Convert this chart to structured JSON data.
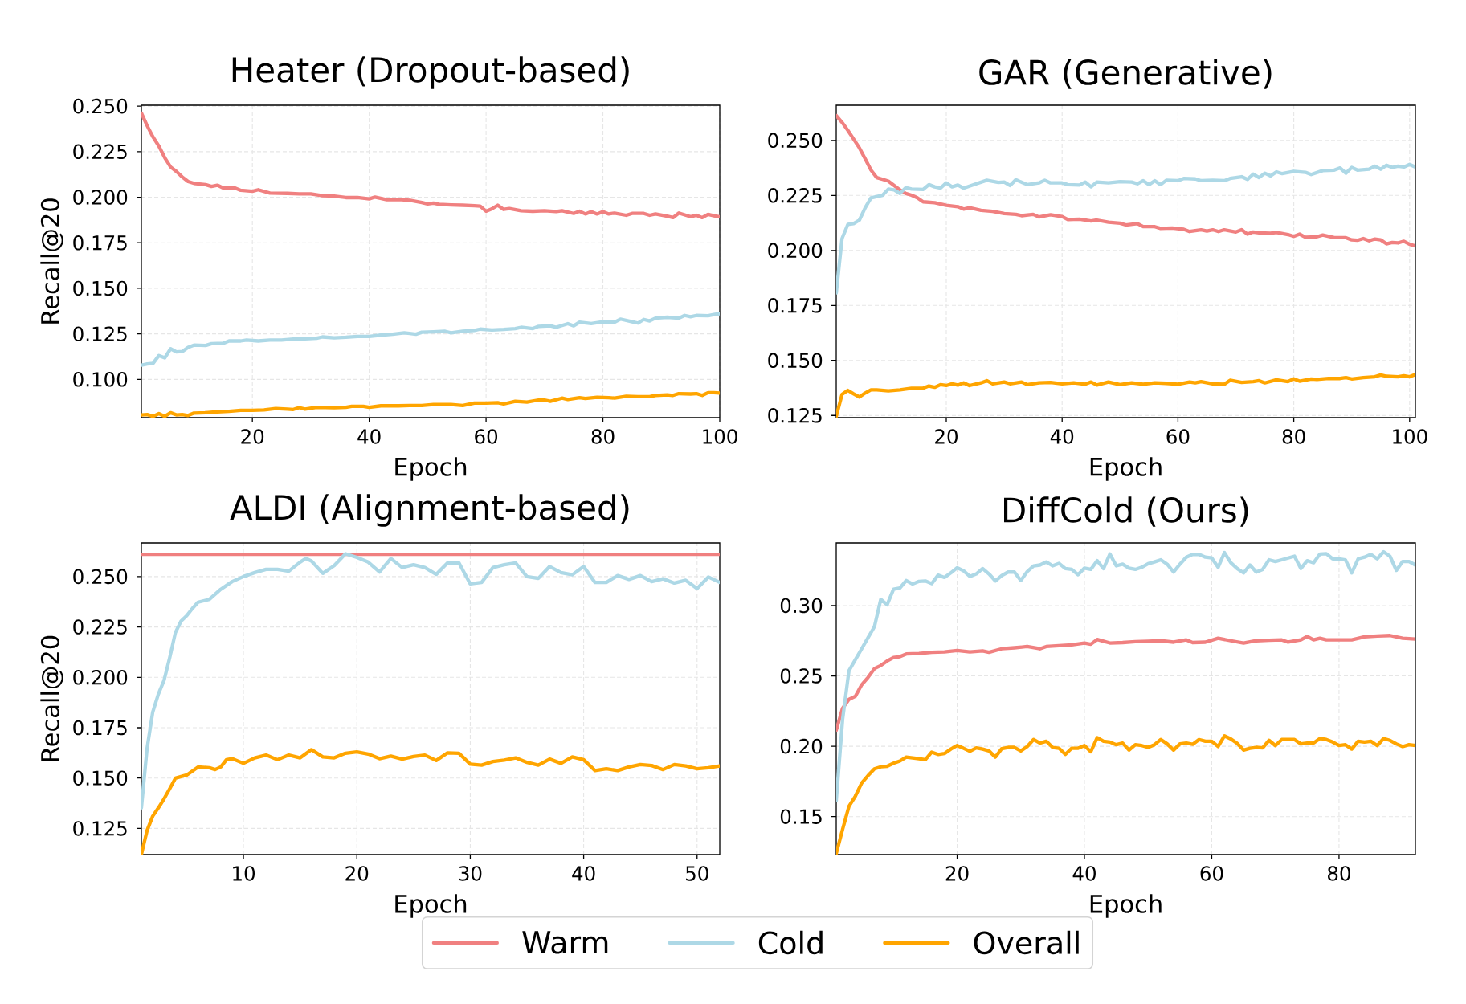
{
  "chart_data": [
    {
      "type": "line",
      "title": "Heater (Dropout-based)",
      "xlabel": "Epoch",
      "ylabel": "Recall@20",
      "xlim": [
        1,
        100
      ],
      "ylim": [
        0.079,
        0.2505
      ],
      "xticks": [
        20,
        40,
        60,
        80,
        100
      ],
      "yticks": [
        {
          "value": 0.1,
          "label": "0.100"
        },
        {
          "value": 0.125,
          "label": "0.125"
        },
        {
          "value": 0.15,
          "label": "0.150"
        },
        {
          "value": 0.175,
          "label": "0.175"
        },
        {
          "value": 0.2,
          "label": "0.200"
        },
        {
          "value": 0.225,
          "label": "0.225"
        },
        {
          "value": 0.25,
          "label": "0.250"
        }
      ],
      "grid": true,
      "series": [
        {
          "color": "#f08080",
          "x": [
            1,
            2,
            3,
            4,
            5,
            6,
            7,
            8,
            9,
            10,
            12,
            13,
            14,
            15,
            17,
            18,
            20,
            21,
            23,
            26,
            28,
            30,
            32,
            34,
            36,
            38,
            40,
            41,
            43,
            45,
            47,
            49,
            50,
            51,
            52,
            54,
            56,
            58,
            59,
            60,
            61,
            62,
            63,
            64,
            66,
            68,
            70,
            72,
            73,
            75,
            76,
            77,
            78,
            79,
            80,
            81,
            82,
            84,
            85,
            87,
            88,
            89,
            91,
            92,
            93,
            95,
            96,
            97,
            98,
            99,
            100
          ],
          "values": [
            0.2462,
            0.2392,
            0.233,
            0.228,
            0.2217,
            0.2166,
            0.2141,
            0.2111,
            0.2086,
            0.2076,
            0.2069,
            0.2059,
            0.2066,
            0.2051,
            0.2051,
            0.2038,
            0.2033,
            0.2041,
            0.2023,
            0.2021,
            0.2018,
            0.2018,
            0.2008,
            0.2006,
            0.1998,
            0.1998,
            0.1991,
            0.2001,
            0.1986,
            0.1988,
            0.1983,
            0.1971,
            0.1963,
            0.1968,
            0.1961,
            0.1958,
            0.1956,
            0.1953,
            0.1951,
            0.1923,
            0.1936,
            0.1956,
            0.1933,
            0.1938,
            0.1926,
            0.1923,
            0.1926,
            0.1921,
            0.1926,
            0.1911,
            0.1923,
            0.1908,
            0.1921,
            0.1908,
            0.1921,
            0.1908,
            0.1913,
            0.1901,
            0.1911,
            0.1911,
            0.1901,
            0.1908,
            0.1896,
            0.1888,
            0.1913,
            0.1893,
            0.1901,
            0.1888,
            0.1906,
            0.1898,
            0.1893
          ]
        },
        {
          "color": "#add8e6",
          "x": [
            1,
            2,
            3,
            4,
            5,
            6,
            7,
            8,
            9,
            10,
            12,
            13,
            15,
            16,
            18,
            19,
            21,
            23,
            25,
            27,
            29,
            31,
            32,
            34,
            36,
            38,
            40,
            42,
            44,
            46,
            48,
            49,
            51,
            53,
            54,
            56,
            58,
            59,
            61,
            63,
            65,
            66,
            68,
            69,
            71,
            72,
            74,
            75,
            76,
            78,
            80,
            82,
            83,
            85,
            86,
            87,
            88,
            89,
            91,
            93,
            94,
            95,
            96,
            98,
            99,
            100
          ],
          "values": [
            0.1078,
            0.1085,
            0.1088,
            0.1131,
            0.1118,
            0.1168,
            0.1151,
            0.1153,
            0.1176,
            0.1188,
            0.1186,
            0.1196,
            0.1198,
            0.1211,
            0.1211,
            0.1216,
            0.1211,
            0.1216,
            0.1216,
            0.1221,
            0.1223,
            0.1226,
            0.1233,
            0.1228,
            0.1231,
            0.1236,
            0.1236,
            0.1243,
            0.1248,
            0.1256,
            0.1248,
            0.1259,
            0.1261,
            0.1264,
            0.1256,
            0.1264,
            0.1269,
            0.1276,
            0.1271,
            0.1274,
            0.1279,
            0.1286,
            0.1279,
            0.1291,
            0.1294,
            0.1286,
            0.1306,
            0.1294,
            0.1314,
            0.1306,
            0.1316,
            0.1314,
            0.1331,
            0.1316,
            0.1309,
            0.1329,
            0.1321,
            0.1336,
            0.1341,
            0.1336,
            0.1351,
            0.1344,
            0.1351,
            0.1349,
            0.1356,
            0.1361
          ]
        },
        {
          "color": "#ffa500",
          "x": [
            1,
            2,
            3,
            4,
            5,
            6,
            7,
            8,
            9,
            10,
            12,
            14,
            16,
            18,
            20,
            22,
            24,
            26,
            27,
            28,
            29,
            31,
            34,
            36,
            37,
            39,
            40,
            42,
            45,
            47,
            49,
            51,
            54,
            56,
            58,
            60,
            62,
            63,
            65,
            67,
            69,
            70,
            71,
            73,
            74,
            76,
            77,
            79,
            81,
            82,
            84,
            86,
            88,
            89,
            91,
            92,
            93,
            95,
            96,
            97,
            98,
            99,
            100
          ],
          "values": [
            0.0805,
            0.0807,
            0.0797,
            0.0812,
            0.0797,
            0.0817,
            0.0805,
            0.0807,
            0.0802,
            0.0815,
            0.0817,
            0.0822,
            0.0825,
            0.083,
            0.083,
            0.0832,
            0.084,
            0.0837,
            0.0835,
            0.0845,
            0.0837,
            0.0847,
            0.0845,
            0.0847,
            0.0852,
            0.0852,
            0.0847,
            0.0855,
            0.0855,
            0.0857,
            0.0857,
            0.0862,
            0.0862,
            0.0857,
            0.087,
            0.087,
            0.0872,
            0.0865,
            0.088,
            0.0875,
            0.0887,
            0.0887,
            0.088,
            0.0897,
            0.089,
            0.09,
            0.0895,
            0.0902,
            0.09,
            0.0897,
            0.0907,
            0.0905,
            0.0905,
            0.0912,
            0.0915,
            0.0912,
            0.0922,
            0.092,
            0.0922,
            0.0912,
            0.0927,
            0.0927,
            0.0925
          ]
        }
      ]
    },
    {
      "type": "line",
      "title": "GAR (Generative)",
      "xlabel": "Epoch",
      "xlim": [
        1,
        101
      ],
      "ylim": [
        0.124,
        0.266
      ],
      "xticks": [
        20,
        40,
        60,
        80,
        100
      ],
      "yticks": [
        {
          "value": 0.125,
          "label": "0.125"
        },
        {
          "value": 0.15,
          "label": "0.150"
        },
        {
          "value": 0.175,
          "label": "0.175"
        },
        {
          "value": 0.2,
          "label": "0.200"
        },
        {
          "value": 0.225,
          "label": "0.225"
        },
        {
          "value": 0.25,
          "label": "0.250"
        }
      ],
      "grid": true,
      "series": [
        {
          "color": "#f08080",
          "x": [
            1,
            2,
            3,
            4,
            5,
            6,
            7,
            8,
            9,
            10,
            11,
            12,
            13,
            14,
            15,
            16,
            18,
            20,
            22,
            23,
            24,
            26,
            28,
            30,
            32,
            33,
            35,
            36,
            38,
            40,
            41,
            43,
            45,
            46,
            48,
            50,
            51,
            53,
            54,
            56,
            57,
            59,
            61,
            62,
            64,
            65,
            66,
            67,
            68,
            70,
            71,
            72,
            73,
            74,
            76,
            77,
            79,
            80,
            81,
            82,
            84,
            85,
            87,
            89,
            90,
            91,
            92,
            93,
            94,
            95,
            96,
            97,
            98,
            99,
            100,
            101
          ],
          "values": [
            0.2613,
            0.2582,
            0.2546,
            0.2506,
            0.2466,
            0.2416,
            0.2365,
            0.2331,
            0.2323,
            0.2315,
            0.2295,
            0.2275,
            0.2259,
            0.2251,
            0.2239,
            0.2221,
            0.2217,
            0.2205,
            0.2199,
            0.2188,
            0.2194,
            0.2182,
            0.2178,
            0.2168,
            0.2164,
            0.2158,
            0.2164,
            0.2152,
            0.2162,
            0.2154,
            0.214,
            0.2142,
            0.2134,
            0.2138,
            0.2128,
            0.2124,
            0.2116,
            0.2122,
            0.2108,
            0.2108,
            0.21,
            0.2102,
            0.2096,
            0.2086,
            0.2094,
            0.2088,
            0.2094,
            0.2086,
            0.2094,
            0.2084,
            0.2094,
            0.2074,
            0.2084,
            0.208,
            0.2078,
            0.2082,
            0.2072,
            0.2064,
            0.2074,
            0.206,
            0.2062,
            0.207,
            0.2058,
            0.2058,
            0.2048,
            0.2046,
            0.2054,
            0.2044,
            0.2052,
            0.2048,
            0.203,
            0.2036,
            0.2034,
            0.2042,
            0.2028,
            0.202
          ]
        },
        {
          "color": "#add8e6",
          "x": [
            1,
            2,
            3,
            4,
            5,
            6,
            7,
            8,
            9,
            10,
            11,
            12,
            13,
            14,
            16,
            17,
            18,
            19,
            20,
            21,
            22,
            23,
            25,
            27,
            29,
            30,
            31,
            32,
            34,
            36,
            37,
            38,
            40,
            41,
            43,
            44,
            45,
            46,
            48,
            50,
            52,
            53,
            54,
            55,
            56,
            57,
            58,
            60,
            61,
            63,
            64,
            66,
            68,
            69,
            71,
            72,
            73,
            74,
            75,
            76,
            77,
            78,
            80,
            82,
            83,
            85,
            87,
            88,
            89,
            90,
            91,
            93,
            94,
            95,
            96,
            97,
            98,
            99,
            100,
            101
          ],
          "values": [
            0.1807,
            0.2054,
            0.2118,
            0.2122,
            0.2138,
            0.2194,
            0.2239,
            0.2245,
            0.2251,
            0.2279,
            0.2275,
            0.2259,
            0.2285,
            0.2279,
            0.2277,
            0.2299,
            0.2289,
            0.2283,
            0.2307,
            0.2289,
            0.2297,
            0.2283,
            0.2301,
            0.2319,
            0.2309,
            0.2311,
            0.2295,
            0.2321,
            0.2299,
            0.2307,
            0.2319,
            0.2307,
            0.2307,
            0.2299,
            0.2297,
            0.2311,
            0.2289,
            0.2311,
            0.2307,
            0.2313,
            0.2311,
            0.2303,
            0.2317,
            0.2299,
            0.2317,
            0.2299,
            0.2319,
            0.2317,
            0.2327,
            0.2325,
            0.2317,
            0.2319,
            0.2317,
            0.2327,
            0.2335,
            0.2323,
            0.2347,
            0.2331,
            0.2351,
            0.2339,
            0.2357,
            0.2349,
            0.2359,
            0.2355,
            0.2345,
            0.2363,
            0.2365,
            0.2375,
            0.2351,
            0.2377,
            0.2365,
            0.2369,
            0.2383,
            0.2369,
            0.2387,
            0.2377,
            0.2383,
            0.2379,
            0.2391,
            0.2379
          ]
        },
        {
          "color": "#ffa500",
          "x": [
            1,
            2,
            3,
            4,
            5,
            6,
            7,
            8,
            10,
            12,
            14,
            16,
            17,
            18,
            19,
            20,
            21,
            22,
            23,
            24,
            26,
            27,
            28,
            30,
            31,
            33,
            34,
            36,
            38,
            40,
            42,
            44,
            45,
            46,
            48,
            50,
            52,
            54,
            56,
            58,
            60,
            62,
            63,
            64,
            66,
            68,
            69,
            71,
            73,
            74,
            75,
            77,
            79,
            80,
            81,
            83,
            84,
            86,
            88,
            89,
            90,
            92,
            94,
            95,
            96,
            98,
            99,
            100,
            101
          ],
          "values": [
            0.1246,
            0.1346,
            0.1364,
            0.1348,
            0.1334,
            0.1352,
            0.1366,
            0.1366,
            0.1362,
            0.1366,
            0.1374,
            0.1374,
            0.1384,
            0.1378,
            0.139,
            0.1386,
            0.1394,
            0.1388,
            0.1398,
            0.1386,
            0.1398,
            0.1408,
            0.1394,
            0.1402,
            0.1394,
            0.1402,
            0.139,
            0.1398,
            0.14,
            0.1394,
            0.1398,
            0.1392,
            0.1402,
            0.1388,
            0.1402,
            0.139,
            0.1398,
            0.1392,
            0.1398,
            0.1396,
            0.1392,
            0.1402,
            0.1398,
            0.1404,
            0.1394,
            0.1392,
            0.141,
            0.14,
            0.1404,
            0.1408,
            0.1398,
            0.1412,
            0.1404,
            0.1416,
            0.1406,
            0.1416,
            0.1414,
            0.1418,
            0.1418,
            0.1422,
            0.1416,
            0.1422,
            0.1426,
            0.1434,
            0.1428,
            0.1426,
            0.143,
            0.1426,
            0.1436
          ]
        }
      ]
    },
    {
      "type": "line",
      "title": "ALDI (Alignment-based)",
      "xlabel": "Epoch",
      "ylabel": "Recall@20",
      "xlim": [
        1,
        52
      ],
      "ylim": [
        0.112,
        0.2667
      ],
      "xticks": [
        10,
        20,
        30,
        40,
        50
      ],
      "yticks": [
        {
          "value": 0.125,
          "label": "0.125"
        },
        {
          "value": 0.15,
          "label": "0.150"
        },
        {
          "value": 0.175,
          "label": "0.175"
        },
        {
          "value": 0.2,
          "label": "0.200"
        },
        {
          "value": 0.225,
          "label": "0.225"
        },
        {
          "value": 0.25,
          "label": "0.250"
        }
      ],
      "grid": true,
      "series": [
        {
          "color": "#f08080",
          "x": [
            1,
            52
          ],
          "values": [
            0.261,
            0.261
          ]
        },
        {
          "color": "#add8e6",
          "x": [
            1,
            1.5,
            2,
            2.5,
            3,
            3.5,
            4,
            4.5,
            5,
            5.5,
            6,
            7,
            8,
            9,
            10,
            11,
            12,
            13,
            14,
            15,
            15.5,
            16,
            17,
            18,
            19,
            20,
            21,
            22,
            23,
            24,
            25,
            26,
            27,
            28,
            29,
            30,
            31,
            32,
            33,
            34,
            35,
            36,
            37,
            38,
            39,
            40,
            41,
            42,
            43,
            44,
            45,
            46,
            47,
            48,
            49,
            50,
            51,
            52
          ],
          "values": [
            0.1352,
            0.1646,
            0.1827,
            0.1917,
            0.1985,
            0.2098,
            0.2222,
            0.2279,
            0.2306,
            0.2342,
            0.2373,
            0.2387,
            0.2437,
            0.2475,
            0.25,
            0.252,
            0.2536,
            0.2536,
            0.2527,
            0.2572,
            0.259,
            0.2577,
            0.2516,
            0.2554,
            0.2613,
            0.2595,
            0.2572,
            0.2523,
            0.259,
            0.2545,
            0.2559,
            0.2545,
            0.2511,
            0.2568,
            0.2568,
            0.2464,
            0.2471,
            0.2545,
            0.2559,
            0.2568,
            0.25,
            0.2491,
            0.255,
            0.252,
            0.2509,
            0.255,
            0.2471,
            0.2471,
            0.2505,
            0.2486,
            0.2505,
            0.2475,
            0.2489,
            0.2468,
            0.2482,
            0.2441,
            0.2498,
            0.2471
          ]
        },
        {
          "color": "#ffa500",
          "x": [
            1,
            1.5,
            2,
            2.5,
            3,
            3.5,
            4,
            5,
            6,
            7,
            7.5,
            8,
            8.5,
            9,
            10,
            11,
            12,
            13,
            14,
            15,
            16,
            17,
            18,
            19,
            20,
            21,
            22,
            23,
            24,
            25,
            26,
            27,
            28,
            29,
            30,
            31,
            32,
            33,
            34,
            35,
            36,
            37,
            38,
            39,
            40,
            41,
            42,
            43,
            44,
            45,
            46,
            47,
            48,
            49,
            50,
            51,
            52
          ],
          "values": [
            0.1121,
            0.1239,
            0.1311,
            0.1352,
            0.1397,
            0.1447,
            0.1499,
            0.1515,
            0.1555,
            0.1551,
            0.1542,
            0.1555,
            0.1591,
            0.1596,
            0.1573,
            0.16,
            0.1614,
            0.1591,
            0.1614,
            0.16,
            0.1641,
            0.1605,
            0.16,
            0.1623,
            0.163,
            0.1619,
            0.1596,
            0.1609,
            0.1594,
            0.1607,
            0.1614,
            0.1587,
            0.1625,
            0.1623,
            0.1569,
            0.1564,
            0.1582,
            0.1589,
            0.16,
            0.1578,
            0.1564,
            0.1594,
            0.1573,
            0.1605,
            0.1591,
            0.1537,
            0.1546,
            0.1537,
            0.1555,
            0.1567,
            0.1562,
            0.1542,
            0.1567,
            0.156,
            0.1546,
            0.1551,
            0.156
          ]
        }
      ]
    },
    {
      "type": "line",
      "title": "DiffCold (Ours)",
      "xlabel": "Epoch",
      "xlim": [
        1,
        92
      ],
      "ylim": [
        0.123,
        0.3445
      ],
      "xticks": [
        20,
        40,
        60,
        80
      ],
      "yticks": [
        {
          "value": 0.15,
          "label": "0.15"
        },
        {
          "value": 0.2,
          "label": "0.20"
        },
        {
          "value": 0.25,
          "label": "0.25"
        },
        {
          "value": 0.3,
          "label": "0.30"
        }
      ],
      "grid": true,
      "legend": "bottom",
      "series": [
        {
          "name": "Warm",
          "color": "#f08080",
          "x": [
            1,
            2,
            3,
            4,
            5,
            6,
            7,
            8,
            9,
            10,
            11,
            12,
            14,
            16,
            18,
            20,
            22,
            24,
            25,
            27,
            29,
            31,
            33,
            34,
            36,
            38,
            40,
            41,
            42,
            43,
            44,
            46,
            48,
            50,
            52,
            54,
            56,
            57,
            59,
            61,
            63,
            65,
            67,
            69,
            71,
            72,
            74,
            75,
            76,
            77,
            78,
            80,
            82,
            84,
            86,
            88,
            90,
            92
          ],
          "values": [
            0.2114,
            0.2271,
            0.2333,
            0.2355,
            0.2437,
            0.249,
            0.2552,
            0.2574,
            0.2606,
            0.2631,
            0.2637,
            0.2656,
            0.2659,
            0.2668,
            0.2671,
            0.2681,
            0.2671,
            0.2678,
            0.2668,
            0.2693,
            0.27,
            0.2709,
            0.2693,
            0.2709,
            0.2715,
            0.2721,
            0.2734,
            0.2725,
            0.2759,
            0.2746,
            0.2734,
            0.2737,
            0.2743,
            0.2746,
            0.275,
            0.274,
            0.2756,
            0.2737,
            0.274,
            0.2768,
            0.275,
            0.2734,
            0.275,
            0.2753,
            0.2756,
            0.274,
            0.2756,
            0.2781,
            0.2756,
            0.2768,
            0.2756,
            0.2756,
            0.2756,
            0.2778,
            0.2784,
            0.2787,
            0.2768,
            0.2762
          ]
        },
        {
          "name": "Cold",
          "color": "#add8e6",
          "x": [
            1,
            2,
            3,
            4,
            5,
            6,
            7,
            8,
            9,
            10,
            11,
            12,
            13,
            14,
            15,
            16,
            17,
            18,
            19,
            20,
            21,
            22,
            23,
            24,
            25,
            26,
            27,
            28,
            29,
            30,
            31,
            32,
            33,
            34,
            35,
            36,
            37,
            38,
            39,
            40,
            41,
            42,
            43,
            44,
            45,
            46,
            47,
            48,
            49,
            50,
            51,
            52,
            53,
            54,
            55,
            56,
            57,
            58,
            59,
            60,
            61,
            62,
            63,
            64,
            65,
            66,
            67,
            68,
            69,
            70,
            71,
            72,
            73,
            74,
            75,
            76,
            77,
            78,
            79,
            80,
            81,
            82,
            83,
            84,
            85,
            86,
            87,
            88,
            89,
            90,
            91,
            92
          ],
          "values": [
            0.1613,
            0.2192,
            0.2537,
            0.2615,
            0.2693,
            0.2772,
            0.285,
            0.3044,
            0.3006,
            0.3116,
            0.3125,
            0.3178,
            0.3153,
            0.3172,
            0.3175,
            0.3156,
            0.3216,
            0.32,
            0.3232,
            0.3269,
            0.3247,
            0.3207,
            0.3225,
            0.3263,
            0.3225,
            0.3175,
            0.3213,
            0.3238,
            0.3238,
            0.3178,
            0.3241,
            0.3282,
            0.3288,
            0.331,
            0.3282,
            0.33,
            0.3263,
            0.3257,
            0.3219,
            0.3266,
            0.3257,
            0.3319,
            0.3263,
            0.3366,
            0.3282,
            0.3294,
            0.3266,
            0.3257,
            0.3272,
            0.3297,
            0.331,
            0.3325,
            0.3294,
            0.3238,
            0.3294,
            0.3344,
            0.3363,
            0.3363,
            0.3344,
            0.3338,
            0.3272,
            0.3376,
            0.3304,
            0.3263,
            0.3232,
            0.3288,
            0.3238,
            0.3257,
            0.3325,
            0.3313,
            0.3325,
            0.3338,
            0.3351,
            0.3263,
            0.3319,
            0.3304,
            0.3366,
            0.3369,
            0.3332,
            0.3332,
            0.3325,
            0.3232,
            0.3332,
            0.3344,
            0.3363,
            0.3332,
            0.3382,
            0.3351,
            0.325,
            0.3313,
            0.3313,
            0.3288
          ]
        },
        {
          "name": "Overall",
          "color": "#ffa500",
          "x": [
            1,
            2,
            3,
            4,
            5,
            6,
            7,
            8,
            9,
            10,
            11,
            12,
            14,
            15,
            16,
            17,
            18,
            19,
            20,
            21,
            22,
            23,
            24,
            25,
            26,
            27,
            28,
            29,
            30,
            31,
            32,
            33,
            34,
            35,
            36,
            37,
            38,
            39,
            40,
            41,
            42,
            43,
            44,
            45,
            46,
            47,
            48,
            49,
            50,
            51,
            52,
            53,
            54,
            55,
            56,
            57,
            58,
            59,
            60,
            61,
            62,
            63,
            64,
            65,
            66,
            67,
            68,
            69,
            70,
            71,
            72,
            73,
            74,
            75,
            76,
            77,
            78,
            79,
            80,
            81,
            82,
            83,
            84,
            85,
            86,
            87,
            88,
            89,
            90,
            91,
            92
          ],
          "values": [
            0.1238,
            0.141,
            0.1573,
            0.1645,
            0.1739,
            0.1792,
            0.1839,
            0.1854,
            0.1858,
            0.1879,
            0.1895,
            0.1923,
            0.1911,
            0.1904,
            0.1958,
            0.1942,
            0.1948,
            0.198,
            0.2005,
            0.1986,
            0.1964,
            0.1989,
            0.198,
            0.1967,
            0.1923,
            0.1983,
            0.1992,
            0.1992,
            0.1967,
            0.1998,
            0.2048,
            0.2023,
            0.2036,
            0.1992,
            0.1986,
            0.1942,
            0.1986,
            0.1986,
            0.2005,
            0.1961,
            0.2061,
            0.2036,
            0.203,
            0.2011,
            0.2023,
            0.1973,
            0.2011,
            0.2005,
            0.1992,
            0.2011,
            0.2048,
            0.2017,
            0.1973,
            0.2017,
            0.2023,
            0.2014,
            0.2048,
            0.2036,
            0.2036,
            0.1998,
            0.2074,
            0.2052,
            0.202,
            0.1973,
            0.1986,
            0.1992,
            0.1989,
            0.2042,
            0.2005,
            0.2048,
            0.2048,
            0.2048,
            0.2017,
            0.2023,
            0.2023,
            0.2055,
            0.2048,
            0.203,
            0.2005,
            0.2011,
            0.198,
            0.2036,
            0.203,
            0.2036,
            0.2005,
            0.2055,
            0.2042,
            0.2017,
            0.1998,
            0.2011,
            0.2005
          ]
        }
      ]
    }
  ]
}
